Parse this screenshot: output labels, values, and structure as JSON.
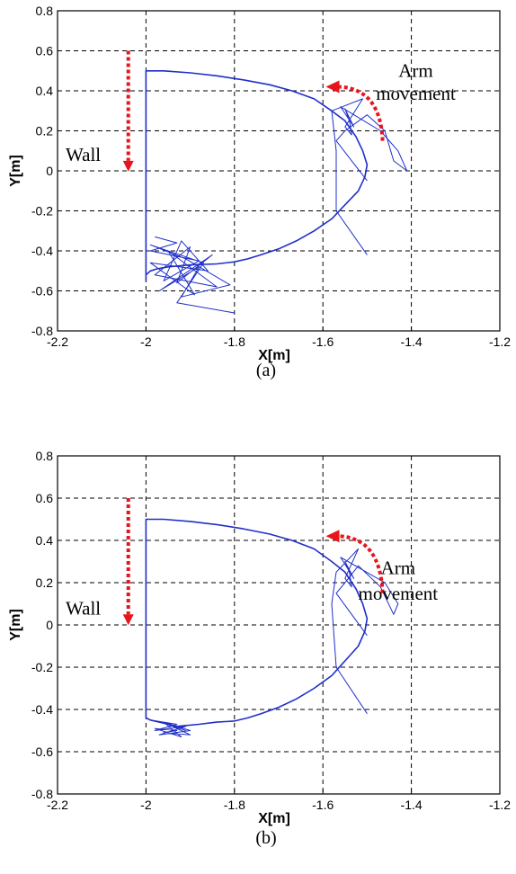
{
  "chart_data": [
    {
      "type": "line",
      "panel_label": "(a)",
      "xlabel": "X[m]",
      "ylabel": "Y[m]",
      "xlim": [
        -2.2,
        -1.2
      ],
      "ylim": [
        -0.8,
        0.8
      ],
      "xticks": [
        -2.2,
        -2,
        -1.8,
        -1.6,
        -1.4,
        -1.2
      ],
      "yticks": [
        -0.8,
        -0.6,
        -0.4,
        -0.2,
        0,
        0.2,
        0.4,
        0.6,
        0.8
      ],
      "xtick_labels": [
        "-2.2",
        "-2",
        "-1.8",
        "-1.6",
        "-1.4",
        "-1.2"
      ],
      "ytick_labels": [
        "-0.8",
        "-0.6",
        "-0.4",
        "-0.2",
        "0",
        "0.2",
        "0.4",
        "0.6",
        "0.8"
      ],
      "grid": true,
      "annotations": {
        "wall": "Wall",
        "arm_line1": "Arm",
        "arm_line2": "movement"
      },
      "series": [
        {
          "color": "#1f2fc8",
          "x": [
            -2,
            -2,
            -1.96,
            -1.9,
            -1.84,
            -1.78,
            -1.72,
            -1.67,
            -1.62,
            -1.58,
            -1.55,
            -1.525,
            -1.51,
            -1.5,
            -1.505,
            -1.52,
            -1.55,
            -1.58,
            -1.62,
            -1.66,
            -1.7,
            -1.74,
            -1.77,
            -1.8,
            -1.84,
            -1.9,
            -1.95,
            -1.975,
            -1.99,
            -2,
            -2,
            -2
          ],
          "y": [
            -0.45,
            0.5,
            0.5,
            0.49,
            0.475,
            0.455,
            0.43,
            0.4,
            0.36,
            0.3,
            0.25,
            0.17,
            0.1,
            0.03,
            -0.03,
            -0.1,
            -0.17,
            -0.24,
            -0.3,
            -0.35,
            -0.39,
            -0.42,
            -0.44,
            -0.455,
            -0.465,
            -0.47,
            -0.48,
            -0.49,
            -0.5,
            -0.52,
            -0.55,
            -0.45
          ]
        },
        {
          "color": "#1f2fc8",
          "x": [
            -1.98,
            -1.93,
            -1.99,
            -1.88,
            -1.96,
            -1.92,
            -1.86,
            -1.99,
            -1.89,
            -1.95,
            -1.84,
            -1.98,
            -1.9,
            -1.93,
            -1.85,
            -1.97,
            -1.88,
            -1.92,
            -1.81,
            -1.91,
            -1.99,
            -1.87,
            -1.93,
            -1.8
          ],
          "y": [
            -0.33,
            -0.36,
            -0.4,
            -0.45,
            -0.55,
            -0.35,
            -0.5,
            -0.46,
            -0.62,
            -0.4,
            -0.58,
            -0.52,
            -0.38,
            -0.56,
            -0.42,
            -0.6,
            -0.48,
            -0.63,
            -0.57,
            -0.44,
            -0.37,
            -0.46,
            -0.66,
            -0.71
          ]
        },
        {
          "color": "#1f2fc8",
          "x": [
            -1.5,
            -1.57,
            -1.57,
            -1.58,
            -1.51,
            -1.55,
            -1.535,
            -1.54,
            -1.55,
            -1.53,
            -1.56,
            -1.47,
            -1.43,
            -1.41,
            -1.44,
            -1.46,
            -1.5,
            -1.55,
            -1.57,
            -1.5
          ],
          "y": [
            -0.42,
            -0.2,
            0.1,
            0.3,
            0.36,
            0.22,
            0.18,
            0.25,
            0.31,
            0.22,
            0.32,
            0.2,
            0.1,
            0,
            0.05,
            0.2,
            0.28,
            0.2,
            0.15,
            -0.05
          ]
        }
      ]
    },
    {
      "type": "line",
      "panel_label": "(b)",
      "xlabel": "X[m]",
      "ylabel": "Y[m]",
      "xlim": [
        -2.2,
        -1.2
      ],
      "ylim": [
        -0.8,
        0.8
      ],
      "xticks": [
        -2.2,
        -2,
        -1.8,
        -1.6,
        -1.4,
        -1.2
      ],
      "yticks": [
        -0.8,
        -0.6,
        -0.4,
        -0.2,
        0,
        0.2,
        0.4,
        0.6,
        0.8
      ],
      "xtick_labels": [
        "-2.2",
        "-2",
        "-1.8",
        "-1.6",
        "-1.4",
        "-1.2"
      ],
      "ytick_labels": [
        "-0.8",
        "-0.6",
        "-0.4",
        "-0.2",
        "0",
        "0.2",
        "0.4",
        "0.6",
        "0.8"
      ],
      "grid": true,
      "annotations": {
        "wall": "Wall",
        "arm_line1": "Arm",
        "arm_line2": "movement"
      },
      "series": [
        {
          "color": "#1f2fc8",
          "x": [
            -2,
            -2,
            -1.96,
            -1.9,
            -1.84,
            -1.78,
            -1.72,
            -1.67,
            -1.62,
            -1.58,
            -1.55,
            -1.525,
            -1.51,
            -1.5,
            -1.505,
            -1.52,
            -1.55,
            -1.58,
            -1.62,
            -1.66,
            -1.7,
            -1.74,
            -1.77,
            -1.8,
            -1.84,
            -1.88,
            -1.93,
            -1.97,
            -1.99,
            -2,
            -2
          ],
          "y": [
            -0.44,
            0.5,
            0.5,
            0.49,
            0.475,
            0.455,
            0.43,
            0.4,
            0.36,
            0.3,
            0.25,
            0.17,
            0.1,
            0.03,
            -0.03,
            -0.1,
            -0.17,
            -0.24,
            -0.3,
            -0.35,
            -0.39,
            -0.42,
            -0.44,
            -0.455,
            -0.46,
            -0.47,
            -0.48,
            -0.46,
            -0.45,
            -0.44,
            -0.44
          ]
        },
        {
          "color": "#1f2fc8",
          "x": [
            -1.99,
            -1.93,
            -1.98,
            -1.91,
            -1.97,
            -1.9,
            -1.96,
            -1.92,
            -1.98,
            -1.93,
            -1.96,
            -1.9,
            -1.95,
            -1.91
          ],
          "y": [
            -0.45,
            -0.47,
            -0.5,
            -0.48,
            -0.52,
            -0.5,
            -0.46,
            -0.53,
            -0.49,
            -0.5,
            -0.51,
            -0.52,
            -0.47,
            -0.5
          ]
        },
        {
          "color": "#1f2fc8",
          "x": [
            -1.5,
            -1.57,
            -1.58,
            -1.57,
            -1.52,
            -1.55,
            -1.535,
            -1.54,
            -1.55,
            -1.53,
            -1.56,
            -1.46,
            -1.43,
            -1.44,
            -1.47,
            -1.52,
            -1.55,
            -1.57,
            -1.5
          ],
          "y": [
            -0.42,
            -0.2,
            0.1,
            0.25,
            0.36,
            0.22,
            0.18,
            0.25,
            0.3,
            0.22,
            0.32,
            0.2,
            0.1,
            0.05,
            0.18,
            0.28,
            0.2,
            0.15,
            -0.05
          ]
        }
      ]
    }
  ],
  "colors": {
    "trajectory": "#1f2fc8",
    "arrow": "#e8141c",
    "grid": "#000000"
  }
}
